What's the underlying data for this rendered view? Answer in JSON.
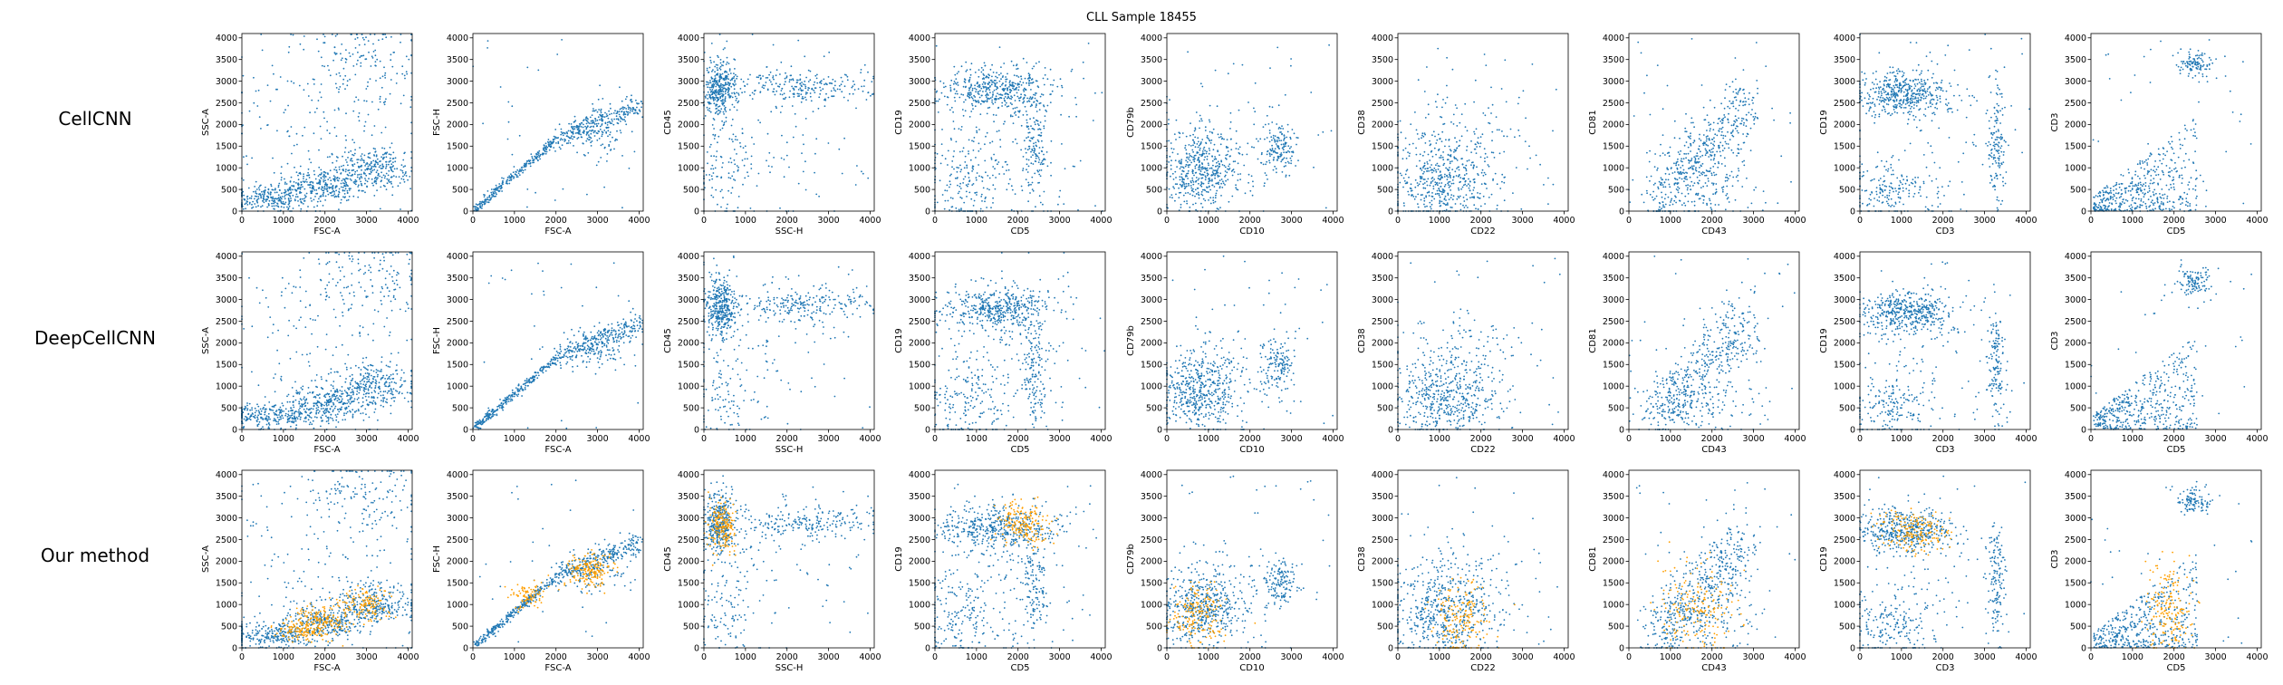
{
  "title": "CLL Sample 18455",
  "row_labels": [
    "CellCNN",
    "DeepCellCNN",
    "Our method"
  ],
  "colors": {
    "points": "#1f77b4",
    "highlight": "#ff9f00",
    "axes": "#000000",
    "background": "#ffffff"
  },
  "chart_data": {
    "type": "scatter",
    "title": "CLL Sample 18455",
    "layout": "3x9 grid",
    "rows": [
      "CellCNN",
      "DeepCellCNN",
      "Our method"
    ],
    "panels": [
      {
        "xlabel": "FSC-A",
        "ylabel": "SSC-A",
        "xlim": [
          0,
          4100
        ],
        "ylim": [
          0,
          4100
        ],
        "xticks": [
          0,
          1000,
          2000,
          3000,
          4000
        ],
        "yticks": [
          0,
          500,
          1000,
          1500,
          2000,
          2500,
          3000,
          3500,
          4000
        ],
        "clusters": [
          {
            "cx": 700,
            "cy": 300,
            "sx": 600,
            "sy": 150,
            "w": 3
          },
          {
            "cx": 2000,
            "cy": 600,
            "sx": 500,
            "sy": 200,
            "w": 3
          },
          {
            "cx": 3200,
            "cy": 1000,
            "sx": 450,
            "sy": 250,
            "w": 3
          },
          {
            "cx": 3000,
            "cy": 3500,
            "sx": 700,
            "sy": 500,
            "w": 1.5
          },
          {
            "cx": 2000,
            "cy": 2000,
            "sx": 1300,
            "sy": 1200,
            "w": 1.5
          }
        ],
        "highlight": [
          {
            "cx": 1900,
            "cy": 600,
            "sx": 300,
            "sy": 180,
            "w": 2
          },
          {
            "cx": 3000,
            "cy": 1000,
            "sx": 300,
            "sy": 200,
            "w": 1.5
          },
          {
            "cx": 1300,
            "cy": 400,
            "sx": 250,
            "sy": 120,
            "w": 1
          }
        ]
      },
      {
        "xlabel": "FSC-A",
        "ylabel": "FSC-H",
        "xlim": [
          0,
          4100
        ],
        "ylim": [
          0,
          4100
        ],
        "xticks": [
          0,
          1000,
          2000,
          3000,
          4000
        ],
        "yticks": [
          0,
          500,
          1000,
          1500,
          2000,
          2500,
          3000,
          3500,
          4000
        ],
        "diagonal": [
          {
            "x0": 50,
            "x1": 2000,
            "y0": 50,
            "y1": 1650,
            "spread": 55,
            "w": 3
          },
          {
            "x0": 2000,
            "x1": 4050,
            "y0": 1650,
            "y1": 2450,
            "spread": 140,
            "w": 3
          }
        ],
        "clusters": [
          {
            "cx": 3000,
            "cy": 1800,
            "sx": 400,
            "sy": 250,
            "w": 1
          }
        ],
        "highlight": [
          {
            "cx": 2800,
            "cy": 1800,
            "sx": 250,
            "sy": 180,
            "w": 2
          },
          {
            "cx": 1300,
            "cy": 1200,
            "sx": 250,
            "sy": 150,
            "w": 1
          }
        ]
      },
      {
        "xlabel": "SSC-H",
        "ylabel": "CD45",
        "xlim": [
          0,
          4100
        ],
        "ylim": [
          0,
          4100
        ],
        "xticks": [
          0,
          1000,
          2000,
          3000,
          4000
        ],
        "yticks": [
          0,
          500,
          1000,
          1500,
          2000,
          2500,
          3000,
          3500,
          4000
        ],
        "clusters": [
          {
            "cx": 380,
            "cy": 2850,
            "sx": 180,
            "sy": 350,
            "w": 4
          },
          {
            "cx": 2400,
            "cy": 2900,
            "sx": 900,
            "sy": 200,
            "w": 2.5
          },
          {
            "cx": 500,
            "cy": 800,
            "sx": 350,
            "sy": 500,
            "w": 1
          },
          {
            "cx": 1500,
            "cy": 1800,
            "sx": 1100,
            "sy": 1000,
            "w": 0.8
          }
        ],
        "highlight": [
          {
            "cx": 450,
            "cy": 2800,
            "sx": 150,
            "sy": 300,
            "w": 2
          }
        ]
      },
      {
        "xlabel": "CD5",
        "ylabel": "CD19",
        "xlim": [
          0,
          4100
        ],
        "ylim": [
          0,
          4100
        ],
        "xticks": [
          0,
          1000,
          2000,
          3000,
          4000
        ],
        "yticks": [
          0,
          500,
          1000,
          1500,
          2000,
          2500,
          3000,
          3500,
          4000
        ],
        "clusters": [
          {
            "cx": 1500,
            "cy": 2800,
            "sx": 700,
            "sy": 250,
            "w": 5
          },
          {
            "cx": 2400,
            "cy": 1500,
            "sx": 150,
            "sy": 600,
            "w": 1.5
          },
          {
            "cx": 700,
            "cy": 700,
            "sx": 500,
            "sy": 600,
            "w": 2
          },
          {
            "cx": 1800,
            "cy": 1500,
            "sx": 900,
            "sy": 1000,
            "w": 1
          }
        ],
        "highlight": [
          {
            "cx": 2100,
            "cy": 2850,
            "sx": 300,
            "sy": 250,
            "w": 2
          }
        ]
      },
      {
        "xlabel": "CD10",
        "ylabel": "CD79b",
        "xlim": [
          0,
          4100
        ],
        "ylim": [
          0,
          4100
        ],
        "xticks": [
          0,
          1000,
          2000,
          3000,
          4000
        ],
        "yticks": [
          0,
          500,
          1000,
          1500,
          2000,
          2500,
          3000,
          3500,
          4000
        ],
        "clusters": [
          {
            "cx": 800,
            "cy": 900,
            "sx": 450,
            "sy": 450,
            "w": 5
          },
          {
            "cx": 2700,
            "cy": 1500,
            "sx": 200,
            "sy": 300,
            "w": 1.5
          },
          {
            "cx": 1500,
            "cy": 1300,
            "sx": 800,
            "sy": 700,
            "w": 1
          }
        ],
        "highlight": [
          {
            "cx": 700,
            "cy": 700,
            "sx": 350,
            "sy": 400,
            "w": 2
          }
        ]
      },
      {
        "xlabel": "CD22",
        "ylabel": "CD38",
        "xlim": [
          0,
          4100
        ],
        "ylim": [
          0,
          4100
        ],
        "xticks": [
          0,
          1000,
          2000,
          3000,
          4000
        ],
        "yticks": [
          0,
          500,
          1000,
          1500,
          2000,
          2500,
          3000,
          3500,
          4000
        ],
        "clusters": [
          {
            "cx": 1100,
            "cy": 700,
            "sx": 650,
            "sy": 500,
            "w": 5
          },
          {
            "cx": 1500,
            "cy": 1600,
            "sx": 900,
            "sy": 500,
            "w": 1.5
          }
        ],
        "highlight": [
          {
            "cx": 1500,
            "cy": 600,
            "sx": 350,
            "sy": 400,
            "w": 2
          }
        ]
      },
      {
        "xlabel": "CD43",
        "ylabel": "CD81",
        "xlim": [
          0,
          4100
        ],
        "ylim": [
          0,
          4100
        ],
        "xticks": [
          0,
          1000,
          2000,
          3000,
          4000
        ],
        "yticks": [
          0,
          500,
          1000,
          1500,
          2000,
          2500,
          3000,
          3500,
          4000
        ],
        "diagonal": [
          {
            "x0": 600,
            "x1": 2900,
            "y0": 200,
            "y1": 2500,
            "spread": 420,
            "w": 5
          }
        ],
        "clusters": [
          {
            "cx": 1800,
            "cy": 600,
            "sx": 700,
            "sy": 400,
            "w": 1.5
          }
        ],
        "highlight": [
          {
            "cx": 1600,
            "cy": 900,
            "sx": 450,
            "sy": 500,
            "w": 2
          }
        ]
      },
      {
        "xlabel": "CD3",
        "ylabel": "CD19",
        "xlim": [
          0,
          4100
        ],
        "ylim": [
          0,
          4100
        ],
        "xticks": [
          0,
          1000,
          2000,
          3000,
          4000
        ],
        "yticks": [
          0,
          500,
          1000,
          1500,
          2000,
          2500,
          3000,
          3500,
          4000
        ],
        "clusters": [
          {
            "cx": 1100,
            "cy": 2700,
            "sx": 550,
            "sy": 250,
            "w": 5
          },
          {
            "cx": 3300,
            "cy": 1500,
            "sx": 100,
            "sy": 700,
            "w": 1.5
          },
          {
            "cx": 700,
            "cy": 500,
            "sx": 500,
            "sy": 400,
            "w": 2
          },
          {
            "cx": 1800,
            "cy": 1500,
            "sx": 1000,
            "sy": 900,
            "w": 0.7
          }
        ],
        "highlight": [
          {
            "cx": 1300,
            "cy": 2700,
            "sx": 400,
            "sy": 250,
            "w": 2
          }
        ]
      },
      {
        "xlabel": "CD5",
        "ylabel": "CD3",
        "xlim": [
          0,
          4100
        ],
        "ylim": [
          0,
          4100
        ],
        "xticks": [
          0,
          1000,
          2000,
          3000,
          4000
        ],
        "yticks": [
          0,
          500,
          1000,
          1500,
          2000,
          2500,
          3000,
          3500,
          4000
        ],
        "wedge": {
          "w": 5
        },
        "clusters": [
          {
            "cx": 2500,
            "cy": 3400,
            "sx": 200,
            "sy": 150,
            "w": 1.2
          }
        ],
        "highlight": [
          {
            "cx": 1900,
            "cy": 900,
            "sx": 300,
            "sy": 500,
            "w": 2
          }
        ]
      }
    ]
  }
}
